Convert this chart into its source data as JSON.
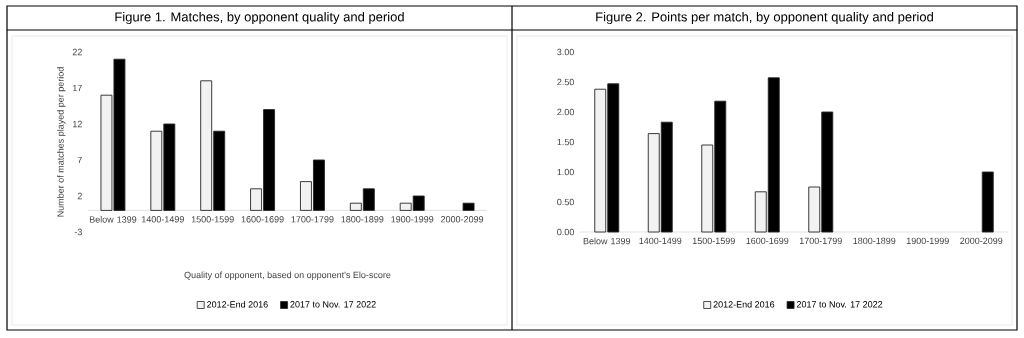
{
  "chart_data": [
    {
      "type": "bar",
      "title": "Figure 1. Matches, by opponent quality and period",
      "xlabel": "Quality of opponent, based on opponent's Elo-score",
      "ylabel": "Number of matches played per period",
      "categories": [
        "Below 1399",
        "1400-1499",
        "1500-1599",
        "1600-1699",
        "1700-1799",
        "1800-1899",
        "1900-1999",
        "2000-2099"
      ],
      "series": [
        {
          "name": "2012-End 2016",
          "color": "#f2f2f2",
          "values": [
            16,
            11,
            18,
            3,
            4,
            1,
            1,
            null
          ]
        },
        {
          "name": "2017 to Nov. 17 2022",
          "color": "#000000",
          "values": [
            21,
            12,
            11,
            14,
            7,
            3,
            2,
            1
          ]
        }
      ],
      "ylim": [
        -3,
        22
      ],
      "yticks": [
        -3,
        2,
        7,
        12,
        17,
        22
      ],
      "legend": "bottom"
    },
    {
      "type": "bar",
      "title": "Figure 2. Points per match, by opponent quality and period",
      "categories": [
        "Below 1399",
        "1400-1499",
        "1500-1599",
        "1600-1699",
        "1700-1799",
        "1800-1899",
        "1900-1999",
        "2000-2099"
      ],
      "series": [
        {
          "name": "2012-End 2016",
          "color": "#f2f2f2",
          "values": [
            2.38,
            1.64,
            1.45,
            0.67,
            0.75,
            null,
            null,
            null
          ]
        },
        {
          "name": "2017 to Nov. 17 2022",
          "color": "#000000",
          "values": [
            2.47,
            1.83,
            2.18,
            2.57,
            2.0,
            null,
            null,
            1.0
          ]
        }
      ],
      "ylim": [
        0,
        3
      ],
      "yticks": [
        {
          "value": 0,
          "label": "0.00"
        },
        {
          "value": 0.5,
          "label": "0.50"
        },
        {
          "value": 1,
          "label": "1.00"
        },
        {
          "value": 1.5,
          "label": "1.50"
        },
        {
          "value": 2,
          "label": "2.00"
        },
        {
          "value": 2.5,
          "label": "2.50"
        },
        {
          "value": 3,
          "label": "3.00"
        }
      ],
      "legend": "bottom"
    }
  ]
}
